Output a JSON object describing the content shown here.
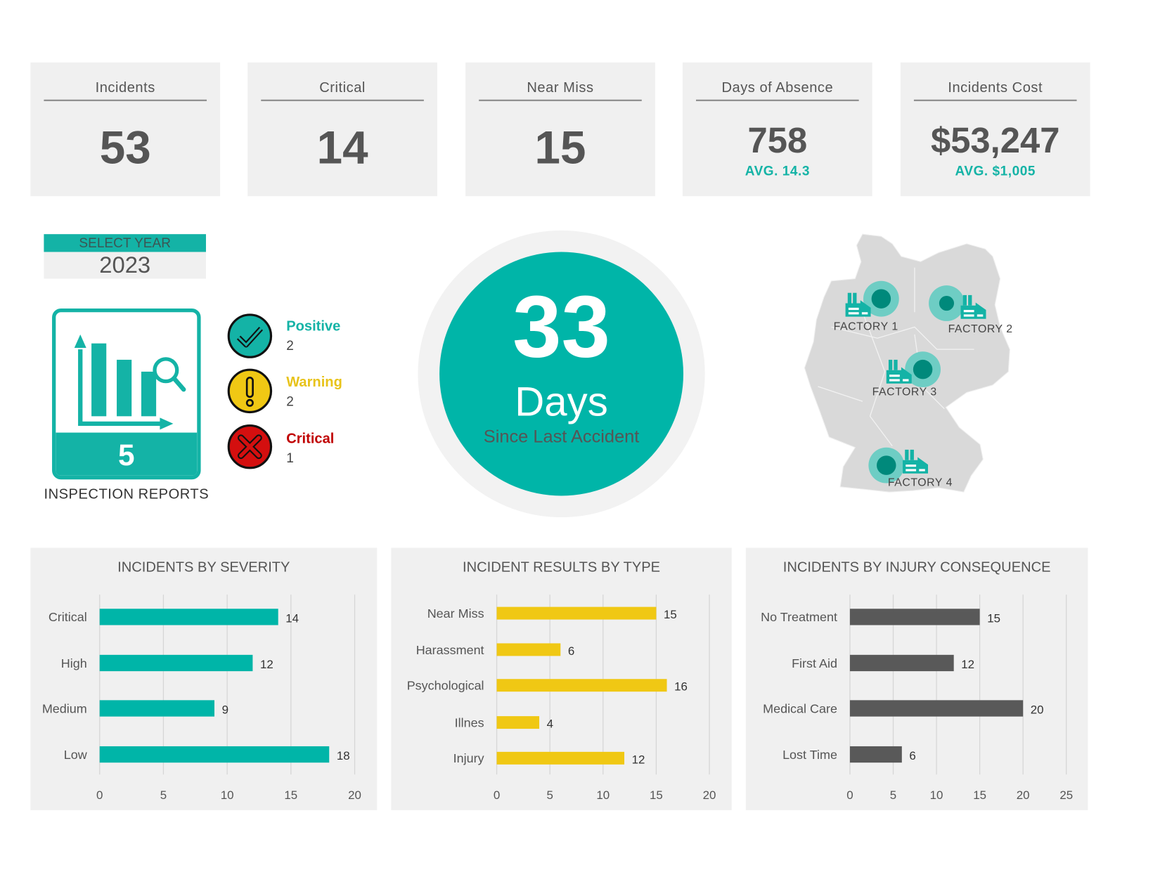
{
  "kpis": [
    {
      "title": "Incidents",
      "value": "53"
    },
    {
      "title": "Critical",
      "value": "14"
    },
    {
      "title": "Near Miss",
      "value": "15"
    },
    {
      "title": "Days of Absence",
      "value": "758",
      "avg": "AVG. 14.3"
    },
    {
      "title": "Incidents Cost",
      "value": "$53,247",
      "avg": "AVG. $1,005"
    }
  ],
  "year_selector": {
    "label": "SELECT YEAR",
    "value": "2023"
  },
  "inspection": {
    "count": "5",
    "label": "INSPECTION REPORTS"
  },
  "statuses": [
    {
      "name": "Positive",
      "count": "2",
      "color": "#14b3a6",
      "icon": "check-icon"
    },
    {
      "name": "Warning",
      "count": "2",
      "color": "#f0c814",
      "icon": "exclamation-icon"
    },
    {
      "name": "Critical",
      "count": "1",
      "color": "#c00000",
      "icon": "x-icon"
    }
  ],
  "days_since": {
    "number": "33",
    "unit": "Days",
    "caption": "Since Last Accident"
  },
  "map": {
    "factories": [
      {
        "label": "FACTORY 1"
      },
      {
        "label": "FACTORY 2"
      },
      {
        "label": "FACTORY 3"
      },
      {
        "label": "FACTORY 4"
      }
    ]
  },
  "colors": {
    "teal": "#00b5a8",
    "yellow": "#f0c814",
    "dark_gray": "#595959",
    "panel": "#f0f0f0"
  },
  "chart_data": [
    {
      "type": "bar",
      "orientation": "horizontal",
      "title": "INCIDENTS BY SEVERITY",
      "categories": [
        "Critical",
        "High",
        "Medium",
        "Low"
      ],
      "values": [
        14,
        12,
        9,
        18
      ],
      "xlim": [
        0,
        20
      ],
      "ticks": [
        "0",
        "5",
        "10",
        "15",
        "20"
      ],
      "color": "#00b5a8",
      "grid": true
    },
    {
      "type": "bar",
      "orientation": "horizontal",
      "title": "INCIDENT RESULTS BY TYPE",
      "categories": [
        "Near Miss",
        "Harassment",
        "Psychological",
        "Illnes",
        "Injury"
      ],
      "values": [
        15,
        6,
        16,
        4,
        12
      ],
      "xlim": [
        0,
        20
      ],
      "ticks": [
        "0",
        "5",
        "10",
        "15",
        "20"
      ],
      "color": "#f0c814",
      "grid": true
    },
    {
      "type": "bar",
      "orientation": "horizontal",
      "title": "INCIDENTS BY INJURY CONSEQUENCE",
      "categories": [
        "No Treatment",
        "First Aid",
        "Medical Care",
        "Lost Time"
      ],
      "values": [
        15,
        12,
        20,
        6
      ],
      "xlim": [
        0,
        25
      ],
      "ticks": [
        "0",
        "5",
        "10",
        "15",
        "20",
        "25"
      ],
      "color": "#595959",
      "grid": true
    }
  ]
}
